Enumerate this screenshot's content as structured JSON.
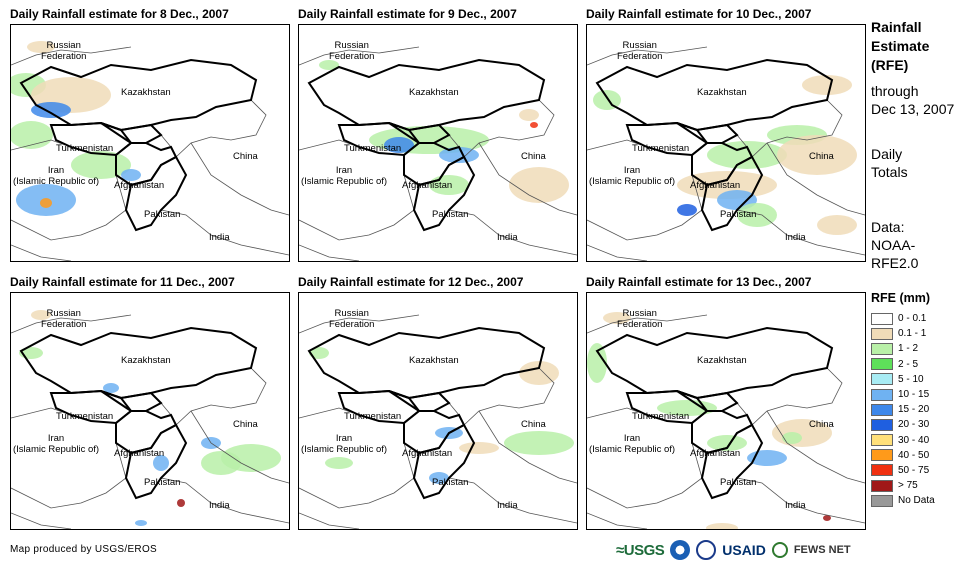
{
  "panels": [
    {
      "title": "Daily Rainfall estimate for 8 Dec., 2007"
    },
    {
      "title": "Daily Rainfall estimate for 9 Dec., 2007"
    },
    {
      "title": "Daily Rainfall estimate for 10 Dec., 2007"
    },
    {
      "title": "Daily Rainfall estimate for 11 Dec., 2007"
    },
    {
      "title": "Daily Rainfall estimate for 12 Dec., 2007"
    },
    {
      "title": "Daily Rainfall estimate for 13 Dec., 2007"
    }
  ],
  "map_labels": {
    "russia": "Russian\nFederation",
    "kazakhstan": "Kazakhstan",
    "turkmenistan": "Turkmenistan",
    "iran": "Iran\n(Islamic Republic of)",
    "afghanistan": "Afghanistan",
    "china": "China",
    "pakistan": "Pakistan",
    "india": "India"
  },
  "side": {
    "title": "Rainfall\nEstimate\n(RFE)",
    "through": "through\nDec 13, 2007",
    "totals": "Daily\nTotals",
    "data": "Data:\nNOAA-\nRFE2.0"
  },
  "legend": {
    "title": "RFE (mm)",
    "items": [
      {
        "label": "0 - 0.1",
        "color": "#ffffff"
      },
      {
        "label": "0.1 - 1",
        "color": "#f0dcb8"
      },
      {
        "label": "1 - 2",
        "color": "#b9f0a8"
      },
      {
        "label": "2 - 5",
        "color": "#5ee05a"
      },
      {
        "label": "5 - 10",
        "color": "#a8ecf4"
      },
      {
        "label": "10 - 15",
        "color": "#6fb2f2"
      },
      {
        "label": "15 - 20",
        "color": "#3e88ea"
      },
      {
        "label": "20 - 30",
        "color": "#1f5fe0"
      },
      {
        "label": "30 - 40",
        "color": "#ffe07a"
      },
      {
        "label": "40 - 50",
        "color": "#ff9a1a"
      },
      {
        "label": "50 - 75",
        "color": "#f03010"
      },
      {
        "label": "> 75",
        "color": "#a01818"
      },
      {
        "label": "No Data",
        "color": "#999999"
      }
    ]
  },
  "credit": "Map produced by USGS/EROS",
  "logos": {
    "usgs": "≈USGS",
    "usaid": "USAID",
    "fews": "FEWS NET"
  }
}
